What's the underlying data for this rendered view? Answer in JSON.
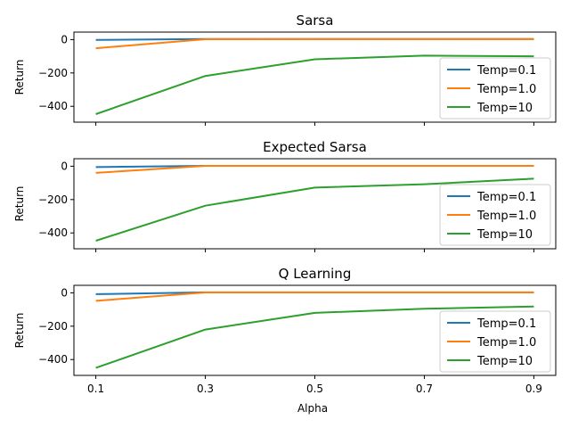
{
  "figure": {
    "xlabel": "Alpha",
    "x_ticks": [
      "0.1",
      "0.3",
      "0.5",
      "0.7",
      "0.9"
    ]
  },
  "chart_data": [
    {
      "type": "line",
      "title": "Sarsa",
      "ylabel": "Return",
      "x": [
        0.1,
        0.3,
        0.5,
        0.7,
        0.9
      ],
      "xlim": [
        0.06,
        0.94
      ],
      "ylim": [
        -495,
        45
      ],
      "yticks": [
        0,
        -200,
        -400
      ],
      "ytick_labels": [
        "0",
        "−200",
        "−400"
      ],
      "grid": false,
      "legend": "lower-right",
      "series": [
        {
          "name": "Temp=0.1",
          "color": "#1f77b4",
          "values": [
            -2,
            4,
            4,
            4,
            4
          ]
        },
        {
          "name": "Temp=1.0",
          "color": "#ff7f0e",
          "values": [
            -52,
            2,
            3,
            3,
            3
          ]
        },
        {
          "name": "Temp=10",
          "color": "#2ca02c",
          "values": [
            -447,
            -218,
            -118,
            -96,
            -100
          ]
        }
      ]
    },
    {
      "type": "line",
      "title": "Expected Sarsa",
      "ylabel": "Return",
      "x": [
        0.1,
        0.3,
        0.5,
        0.7,
        0.9
      ],
      "xlim": [
        0.06,
        0.94
      ],
      "ylim": [
        -495,
        45
      ],
      "yticks": [
        0,
        -200,
        -400
      ],
      "ytick_labels": [
        "0",
        "−200",
        "−400"
      ],
      "grid": false,
      "legend": "lower-right",
      "series": [
        {
          "name": "Temp=0.1",
          "color": "#1f77b4",
          "values": [
            -5,
            2,
            2,
            2,
            2
          ]
        },
        {
          "name": "Temp=1.0",
          "color": "#ff7f0e",
          "values": [
            -40,
            2,
            2,
            2,
            2
          ]
        },
        {
          "name": "Temp=10",
          "color": "#2ca02c",
          "values": [
            -447,
            -237,
            -128,
            -108,
            -75
          ]
        }
      ]
    },
    {
      "type": "line",
      "title": "Q Learning",
      "ylabel": "Return",
      "x": [
        0.1,
        0.3,
        0.5,
        0.7,
        0.9
      ],
      "xlim": [
        0.06,
        0.94
      ],
      "ylim": [
        -495,
        45
      ],
      "yticks": [
        0,
        -200,
        -400
      ],
      "ytick_labels": [
        "0",
        "−200",
        "−400"
      ],
      "grid": false,
      "legend": "lower-right",
      "series": [
        {
          "name": "Temp=0.1",
          "color": "#1f77b4",
          "values": [
            -8,
            3,
            3,
            3,
            3
          ]
        },
        {
          "name": "Temp=1.0",
          "color": "#ff7f0e",
          "values": [
            -48,
            2,
            2,
            2,
            2
          ]
        },
        {
          "name": "Temp=10",
          "color": "#2ca02c",
          "values": [
            -450,
            -220,
            -120,
            -95,
            -82
          ]
        }
      ]
    }
  ]
}
